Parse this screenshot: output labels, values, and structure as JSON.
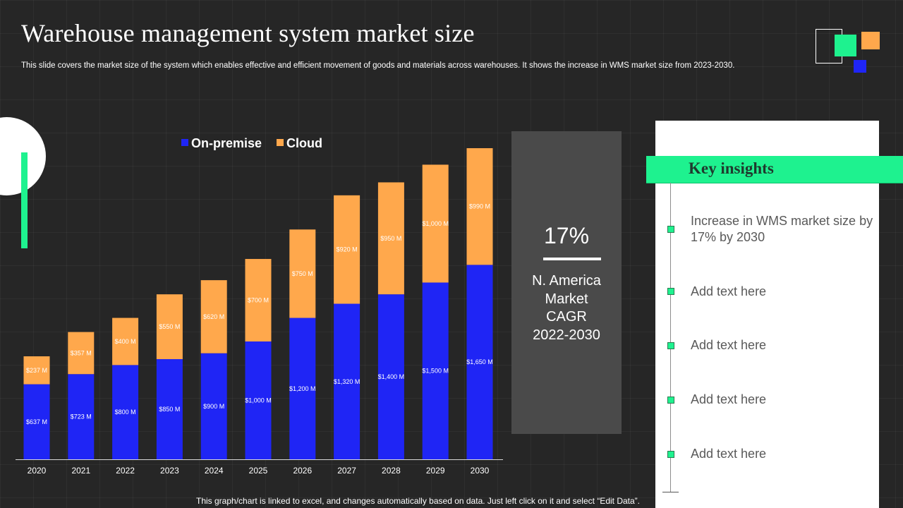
{
  "slide": {
    "title": "Warehouse management system market size",
    "subtitle": "This slide covers the market size of the system which enables effective and efficient movement of goods and materials across warehouses. It shows the increase in WMS market size from 2023-2030.",
    "footer": "This graph/chart is linked to excel, and changes automatically based on data. Just left click on it and select “Edit Data”."
  },
  "colors": {
    "background": "#262626",
    "on_premise": "#1f25f5",
    "cloud": "#ffa84c",
    "accent_green": "#1ef28f",
    "panel_gray": "#4a4a4a"
  },
  "chart_data": {
    "type": "bar",
    "stacked": true,
    "categories": [
      "2020",
      "2021",
      "2022",
      "2023",
      "2024",
      "2025",
      "2026",
      "2027",
      "2028",
      "2029",
      "2030"
    ],
    "series": [
      {
        "name": "On-premise",
        "color": "#1f25f5",
        "values": [
          637,
          723,
          800,
          850,
          900,
          1000,
          1200,
          1320,
          1400,
          1500,
          1650
        ],
        "labels": [
          "$637 M",
          "$723 M",
          "$800 M",
          "$850 M",
          "$900 M",
          "$1,000 M",
          "$1,200 M",
          "$1,320 M",
          "$1,400 M",
          "$1,500 M",
          "$1,650 M"
        ]
      },
      {
        "name": "Cloud",
        "color": "#ffa84c",
        "values": [
          237,
          357,
          400,
          550,
          620,
          700,
          750,
          920,
          950,
          1000,
          990
        ],
        "labels": [
          "$237 M",
          "$357 M",
          "$400 M",
          "$550 M",
          "$620 M",
          "$700 M",
          "$750 M",
          "$920 M",
          "$950 M",
          "$1,000 M",
          "$990 M"
        ]
      }
    ],
    "unit": "$ M",
    "ylim": [
      0,
      2700
    ],
    "legend_position": "top",
    "grid": false,
    "xlabel": "",
    "ylabel": ""
  },
  "cagr": {
    "value": "17%",
    "label_lines": [
      "N. America",
      "Market",
      "CAGR",
      "2022-2030"
    ]
  },
  "insights": {
    "title": "Key insights",
    "items": [
      "Increase in WMS market size by 17% by 2030",
      "Add text here",
      "Add text here",
      "Add text here",
      "Add text here"
    ]
  }
}
